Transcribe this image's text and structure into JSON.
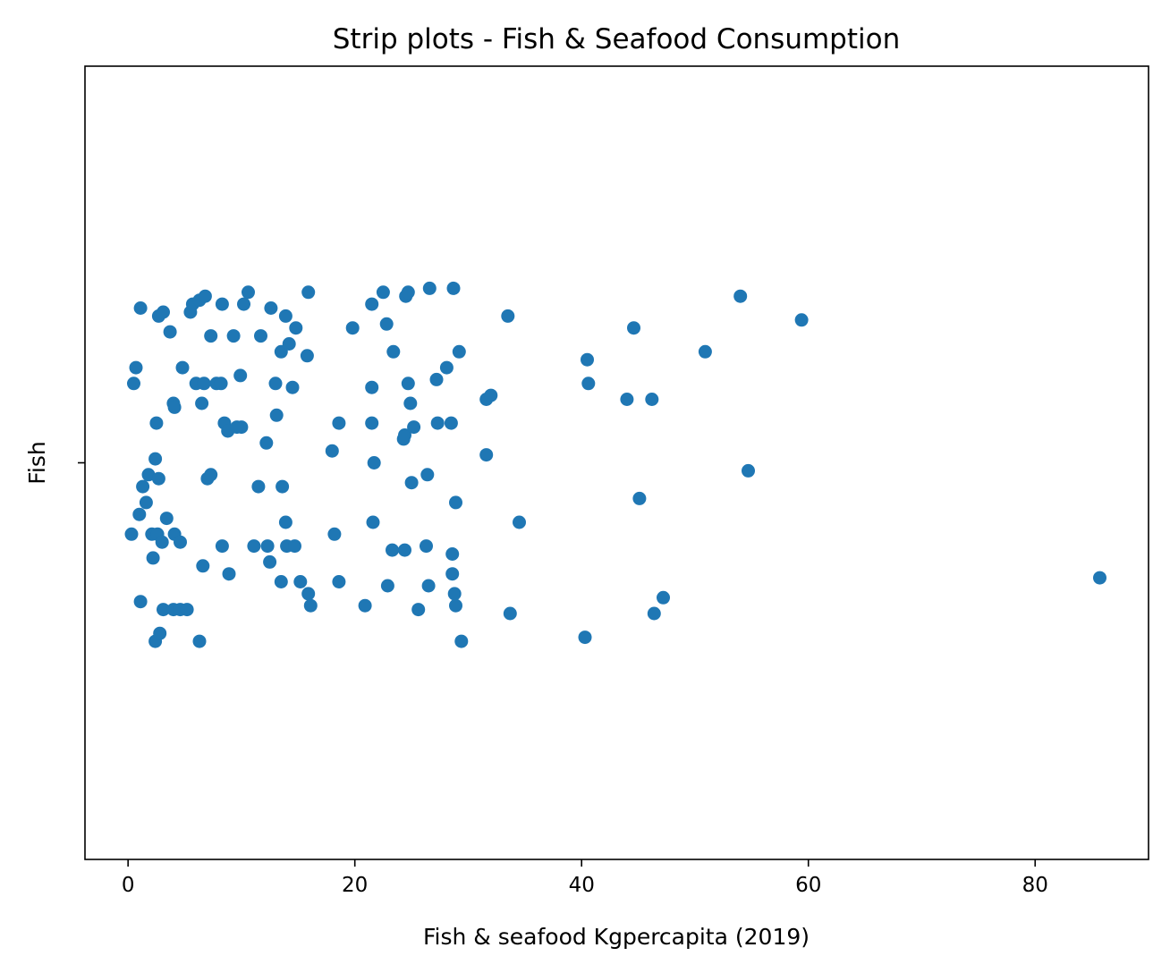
{
  "chart_data": {
    "type": "scatter",
    "subtype": "strip",
    "title": "Strip plots - Fish & Seafood Consumption",
    "xlabel": "Fish & seafood Kgpercapita (2019)",
    "ylabel": "",
    "category_labels": [
      "Fish"
    ],
    "xlim": [
      -3.8,
      90
    ],
    "x_ticks": [
      0,
      20,
      40,
      60,
      80
    ],
    "x_tick_labels": [
      "0",
      "20",
      "40",
      "60",
      "80"
    ],
    "jitter_range": [
      -0.4,
      0.4
    ],
    "grid": false,
    "legend": "none",
    "marker_color": "#1f77b4",
    "series": [
      {
        "name": "",
        "category": "Fish",
        "points": [
          [
            1.1,
            -0.35
          ],
          [
            2.4,
            -0.45
          ],
          [
            2.8,
            -0.43
          ],
          [
            6.3,
            -0.45
          ],
          [
            3.1,
            -0.37
          ],
          [
            4.0,
            -0.37
          ],
          [
            4.6,
            -0.37
          ],
          [
            5.2,
            -0.37
          ],
          [
            0.3,
            -0.18
          ],
          [
            1.0,
            -0.13
          ],
          [
            1.6,
            -0.1
          ],
          [
            2.1,
            -0.18
          ],
          [
            2.2,
            -0.24
          ],
          [
            2.6,
            -0.18
          ],
          [
            3.0,
            -0.2
          ],
          [
            3.4,
            -0.14
          ],
          [
            4.1,
            -0.18
          ],
          [
            4.6,
            -0.2
          ],
          [
            1.3,
            -0.06
          ],
          [
            1.8,
            -0.03
          ],
          [
            2.4,
            0.01
          ],
          [
            2.7,
            -0.04
          ],
          [
            2.5,
            0.1
          ],
          [
            4.0,
            0.15
          ],
          [
            4.1,
            0.14
          ],
          [
            4.8,
            0.24
          ],
          [
            0.5,
            0.2
          ],
          [
            0.7,
            0.24
          ],
          [
            1.1,
            0.39
          ],
          [
            2.7,
            0.37
          ],
          [
            3.1,
            0.38
          ],
          [
            3.7,
            0.33
          ],
          [
            5.5,
            0.38
          ],
          [
            5.7,
            0.4
          ],
          [
            6.3,
            0.41
          ],
          [
            6.8,
            0.42
          ],
          [
            6.0,
            0.2
          ],
          [
            6.5,
            0.15
          ],
          [
            6.7,
            0.2
          ],
          [
            7.3,
            0.32
          ],
          [
            7.8,
            0.2
          ],
          [
            8.3,
            0.4
          ],
          [
            8.2,
            0.2
          ],
          [
            8.5,
            0.1
          ],
          [
            8.8,
            0.08
          ],
          [
            9.3,
            0.32
          ],
          [
            9.9,
            0.22
          ],
          [
            10.2,
            0.4
          ],
          [
            10.6,
            0.43
          ],
          [
            6.6,
            -0.26
          ],
          [
            7.0,
            -0.04
          ],
          [
            7.3,
            -0.03
          ],
          [
            8.3,
            -0.21
          ],
          [
            8.9,
            -0.28
          ],
          [
            11.1,
            -0.21
          ],
          [
            12.3,
            -0.21
          ],
          [
            12.5,
            -0.25
          ],
          [
            13.5,
            -0.3
          ],
          [
            11.5,
            -0.06
          ],
          [
            12.2,
            0.05
          ],
          [
            13.6,
            -0.06
          ],
          [
            13.9,
            -0.15
          ],
          [
            14.0,
            -0.21
          ],
          [
            14.7,
            -0.21
          ],
          [
            15.2,
            -0.3
          ],
          [
            15.9,
            -0.33
          ],
          [
            16.1,
            -0.36
          ],
          [
            12.6,
            0.39
          ],
          [
            13.0,
            0.2
          ],
          [
            13.1,
            0.12
          ],
          [
            13.5,
            0.28
          ],
          [
            13.9,
            0.37
          ],
          [
            14.2,
            0.3
          ],
          [
            14.5,
            0.19
          ],
          [
            14.8,
            0.34
          ],
          [
            15.8,
            0.27
          ],
          [
            15.9,
            0.43
          ],
          [
            11.7,
            0.32
          ],
          [
            10.0,
            0.09
          ],
          [
            9.6,
            0.09
          ],
          [
            18.0,
            0.03
          ],
          [
            18.6,
            0.1
          ],
          [
            19.8,
            0.34
          ],
          [
            18.2,
            -0.18
          ],
          [
            18.6,
            -0.3
          ],
          [
            20.9,
            -0.36
          ],
          [
            21.6,
            -0.15
          ],
          [
            21.7,
            0.0
          ],
          [
            21.5,
            0.1
          ],
          [
            21.5,
            0.19
          ],
          [
            21.5,
            0.4
          ],
          [
            22.5,
            0.43
          ],
          [
            22.8,
            0.35
          ],
          [
            23.4,
            0.28
          ],
          [
            24.3,
            0.06
          ],
          [
            24.4,
            0.07
          ],
          [
            24.7,
            0.2
          ],
          [
            24.9,
            0.15
          ],
          [
            24.5,
            0.42
          ],
          [
            24.7,
            0.43
          ],
          [
            25.2,
            0.09
          ],
          [
            25.0,
            -0.05
          ],
          [
            23.3,
            -0.22
          ],
          [
            22.9,
            -0.31
          ],
          [
            24.4,
            -0.22
          ],
          [
            25.6,
            -0.37
          ],
          [
            26.3,
            -0.21
          ],
          [
            26.4,
            -0.03
          ],
          [
            26.5,
            -0.31
          ],
          [
            26.6,
            0.44
          ],
          [
            27.2,
            0.21
          ],
          [
            27.3,
            0.1
          ],
          [
            28.1,
            0.24
          ],
          [
            28.5,
            0.1
          ],
          [
            28.7,
            0.44
          ],
          [
            28.6,
            -0.23
          ],
          [
            28.6,
            -0.28
          ],
          [
            28.8,
            -0.33
          ],
          [
            28.9,
            -0.36
          ],
          [
            28.9,
            -0.1
          ],
          [
            29.4,
            -0.45
          ],
          [
            29.2,
            0.28
          ],
          [
            31.6,
            0.02
          ],
          [
            31.6,
            0.16
          ],
          [
            32.0,
            0.17
          ],
          [
            33.7,
            -0.38
          ],
          [
            33.5,
            0.37
          ],
          [
            34.5,
            -0.15
          ],
          [
            40.3,
            -0.44
          ],
          [
            40.5,
            0.26
          ],
          [
            40.6,
            0.2
          ],
          [
            44.0,
            0.16
          ],
          [
            44.6,
            0.34
          ],
          [
            45.1,
            -0.09
          ],
          [
            46.2,
            0.16
          ],
          [
            46.4,
            -0.38
          ],
          [
            47.2,
            -0.34
          ],
          [
            50.9,
            0.28
          ],
          [
            54.0,
            0.42
          ],
          [
            54.7,
            -0.02
          ],
          [
            59.4,
            0.36
          ],
          [
            85.7,
            -0.29
          ]
        ]
      }
    ]
  }
}
